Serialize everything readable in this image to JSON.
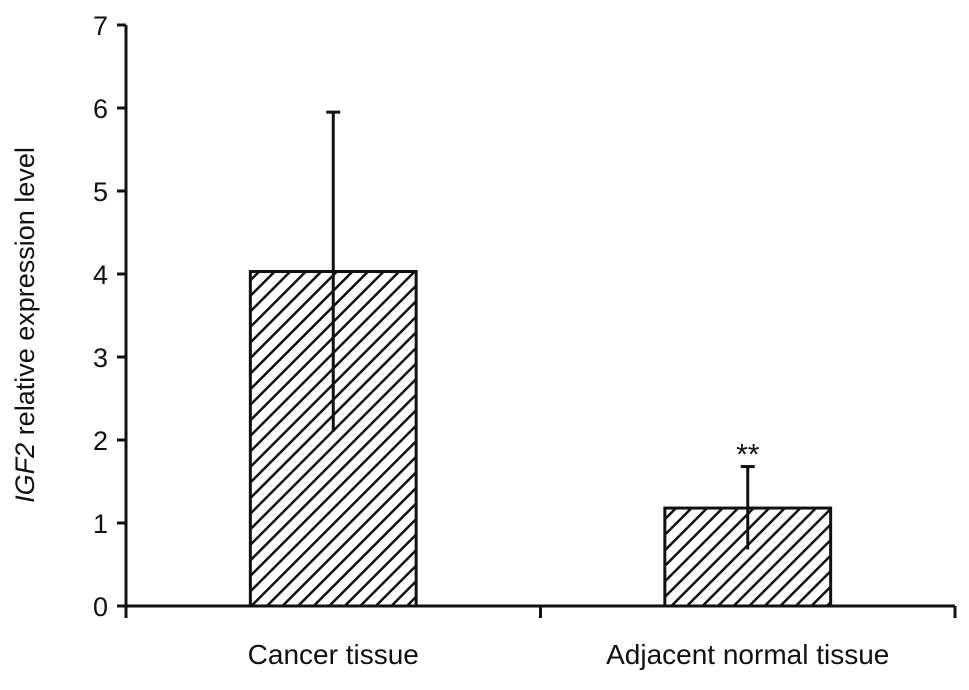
{
  "chart_data": {
    "type": "bar",
    "title": "",
    "categories": [
      "Cancer tissue",
      "Adjacent normal tissue"
    ],
    "values": [
      4.03,
      1.18
    ],
    "error_upper": [
      1.92,
      0.5
    ],
    "error_lower": [
      1.93,
      0.5
    ],
    "annotations": [
      "",
      "**"
    ],
    "ylabel_italic": "IGF2",
    "ylabel_rest": " relative expression level",
    "xlabel": "",
    "ylim": [
      0,
      7
    ],
    "yticks": [
      0,
      1,
      2,
      3,
      4,
      5,
      6,
      7
    ],
    "grid": false,
    "legend": "none",
    "bar_pattern": "diagonal-hatch",
    "bar_color": "#111111"
  }
}
